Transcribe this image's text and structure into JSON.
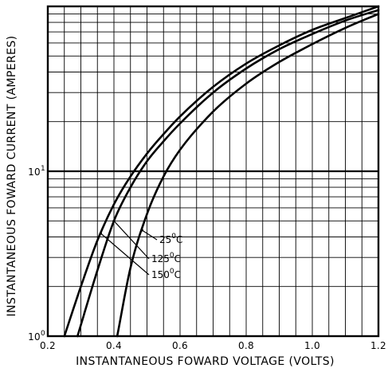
{
  "chart_data": {
    "type": "line",
    "title": "",
    "xlabel": "INSTANTANEOUS FOWARD VOLTAGE  (VOLTS)",
    "ylabel": "INSTANTANEOUS FOWARD CURRENT  (AMPERES)",
    "xlim": [
      0.2,
      1.2
    ],
    "ylim": [
      1,
      100
    ],
    "y_scale": "log",
    "grid": true,
    "x_ticks": [
      {
        "value": 0.2,
        "label": "0.2"
      },
      {
        "value": 0.4,
        "label": "0.4"
      },
      {
        "value": 0.6,
        "label": "0.6"
      },
      {
        "value": 0.8,
        "label": "0.8"
      },
      {
        "value": 1.0,
        "label": "1.0"
      },
      {
        "value": 1.2,
        "label": "1.2"
      }
    ],
    "y_ticks": [
      {
        "value": 1,
        "base": "10",
        "exp": "0"
      },
      {
        "value": 10,
        "base": "10",
        "exp": "1"
      }
    ],
    "series": [
      {
        "name": "150°C",
        "label_main": "150",
        "label_sup": "0",
        "label_unit": "C",
        "x": [
          0.25,
          0.3,
          0.35,
          0.4,
          0.45,
          0.5,
          0.55,
          0.6,
          0.7,
          0.8,
          0.9,
          1.0,
          1.1,
          1.2
        ],
        "y": [
          1.0,
          2.0,
          3.8,
          6.3,
          9.3,
          12.8,
          16.8,
          21.5,
          32.5,
          45.0,
          58.0,
          72.0,
          85.0,
          100.0
        ]
      },
      {
        "name": "125°C",
        "label_main": "125",
        "label_sup": "0",
        "label_unit": "C",
        "x": [
          0.29,
          0.35,
          0.4,
          0.45,
          0.5,
          0.55,
          0.6,
          0.7,
          0.8,
          0.9,
          1.0,
          1.1,
          1.2
        ],
        "y": [
          1.0,
          2.5,
          5.0,
          8.0,
          11.5,
          15.2,
          19.5,
          30.0,
          42.0,
          55.0,
          68.0,
          82.0,
          95.0
        ]
      },
      {
        "name": "25°C",
        "label_main": "25",
        "label_sup": "0",
        "label_unit": "C",
        "x": [
          0.41,
          0.45,
          0.5,
          0.55,
          0.6,
          0.7,
          0.8,
          0.9,
          1.0,
          1.1,
          1.2
        ],
        "y": [
          1.0,
          2.6,
          5.5,
          9.3,
          13.5,
          23.0,
          34.0,
          46.0,
          59.0,
          74.0,
          90.0
        ]
      }
    ]
  }
}
